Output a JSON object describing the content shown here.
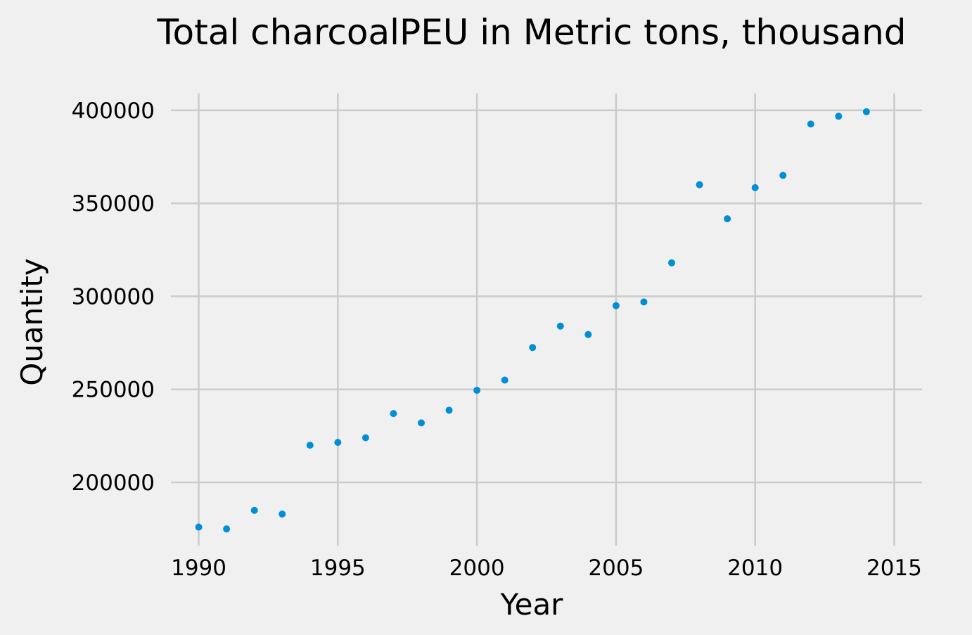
{
  "chart_data": {
    "type": "scatter",
    "title": "Total charcoalPEU in Metric tons,  thousand",
    "xlabel": "Year",
    "ylabel": "Quantity",
    "x": [
      1990,
      1991,
      1992,
      1993,
      1994,
      1995,
      1996,
      1997,
      1998,
      1999,
      2000,
      2001,
      2002,
      2003,
      2004,
      2005,
      2006,
      2007,
      2008,
      2009,
      2010,
      2011,
      2012,
      2013,
      2014
    ],
    "y": [
      176000,
      175000,
      185000,
      183000,
      220000,
      221500,
      224000,
      237000,
      232000,
      238800,
      249500,
      255000,
      272500,
      284000,
      279500,
      295000,
      297000,
      318000,
      360000,
      341700,
      358400,
      365000,
      392600,
      396800,
      399200
    ],
    "xlim": [
      1989,
      2016
    ],
    "ylim": [
      166000,
      409000
    ],
    "xticks": [
      1990,
      1995,
      2000,
      2005,
      2010,
      2015
    ],
    "yticks": [
      200000,
      250000,
      300000,
      350000,
      400000
    ],
    "grid": true,
    "marker_color": "#008fd5",
    "background_color": "#f0f0f0",
    "grid_color": "#cbcbcb"
  }
}
